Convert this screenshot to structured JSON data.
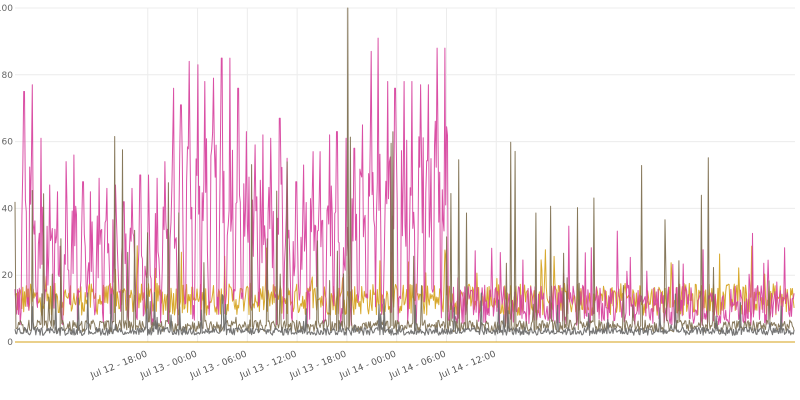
{
  "chart_data": {
    "type": "line",
    "title": "",
    "xlabel": "",
    "ylabel": "",
    "ylim": [
      0,
      100
    ],
    "yticks": [
      0,
      20,
      40,
      60,
      80,
      100
    ],
    "xlim_hours": [
      -22,
      72
    ],
    "xtick_labels": [
      {
        "label": "Jul 12 - 18:00",
        "hour": -6
      },
      {
        "label": "Jul 13 - 00:00",
        "hour": 0
      },
      {
        "label": "Jul 13 - 06:00",
        "hour": 6
      },
      {
        "label": "Jul 13 - 12:00",
        "hour": 12
      },
      {
        "label": "Jul 13 - 18:00",
        "hour": 18
      },
      {
        "label": "Jul 14 - 00:00",
        "hour": 24
      },
      {
        "label": "Jul 14 - 06:00",
        "hour": 30
      },
      {
        "label": "Jul 14 - 12:00",
        "hour": 36
      }
    ],
    "grid": true,
    "legend": "none",
    "series": [
      {
        "color": "#d63d9b",
        "peaks": [
          {
            "hour": -20.9,
            "value": 75
          },
          {
            "hour": -19.9,
            "value": 77
          },
          {
            "hour": -18.9,
            "value": 61
          },
          {
            "hour": -17.8,
            "value": 47
          },
          {
            "hour": -16.9,
            "value": 45
          },
          {
            "hour": -15.8,
            "value": 54
          },
          {
            "hour": -14.9,
            "value": 56
          },
          {
            "hour": -13.8,
            "value": 48
          },
          {
            "hour": -12.9,
            "value": 45
          },
          {
            "hour": -11.9,
            "value": 49
          },
          {
            "hour": -10.9,
            "value": 46
          },
          {
            "hour": -9.9,
            "value": 47
          },
          {
            "hour": -8.9,
            "value": 42
          },
          {
            "hour": -7.9,
            "value": 46
          },
          {
            "hour": -6.9,
            "value": 50
          },
          {
            "hour": -5.9,
            "value": 50
          },
          {
            "hour": -4.9,
            "value": 49
          },
          {
            "hour": -3.9,
            "value": 54
          },
          {
            "hour": -2.9,
            "value": 76
          },
          {
            "hour": -2.0,
            "value": 71
          },
          {
            "hour": -1.0,
            "value": 84
          },
          {
            "hour": 0.0,
            "value": 83
          },
          {
            "hour": 0.9,
            "value": 78
          },
          {
            "hour": 1.9,
            "value": 79
          },
          {
            "hour": 2.9,
            "value": 85
          },
          {
            "hour": 3.9,
            "value": 85
          },
          {
            "hour": 4.9,
            "value": 76
          },
          {
            "hour": 5.9,
            "value": 63
          },
          {
            "hour": 6.9,
            "value": 59
          },
          {
            "hour": 7.9,
            "value": 62
          },
          {
            "hour": 8.8,
            "value": 61
          },
          {
            "hour": 9.9,
            "value": 67
          },
          {
            "hour": 10.8,
            "value": 55
          },
          {
            "hour": 11.9,
            "value": 48
          },
          {
            "hour": 12.8,
            "value": 53
          },
          {
            "hour": 13.9,
            "value": 57
          },
          {
            "hour": 14.8,
            "value": 57
          },
          {
            "hour": 15.9,
            "value": 62
          },
          {
            "hour": 16.8,
            "value": 63
          },
          {
            "hour": 17.9,
            "value": 61
          },
          {
            "hour": 18.9,
            "value": 58
          },
          {
            "hour": 19.9,
            "value": 65
          },
          {
            "hour": 20.9,
            "value": 87
          },
          {
            "hour": 21.8,
            "value": 91
          },
          {
            "hour": 22.9,
            "value": 78
          },
          {
            "hour": 23.8,
            "value": 76
          },
          {
            "hour": 24.9,
            "value": 78
          },
          {
            "hour": 25.8,
            "value": 78
          },
          {
            "hour": 26.9,
            "value": 77
          },
          {
            "hour": 27.8,
            "value": 77
          },
          {
            "hour": 28.9,
            "value": 88
          },
          {
            "hour": 29.8,
            "value": 88
          }
        ],
        "baseline": 5
      },
      {
        "color": "#d4a017",
        "baseline": 8,
        "spike_max": 35
      },
      {
        "color": "#7a6a4a",
        "baseline": 3,
        "spike_max": 100,
        "spike_hour": 18.1
      },
      {
        "color": "#6e6e6e",
        "baseline": 2,
        "spike_max": 22
      }
    ]
  }
}
